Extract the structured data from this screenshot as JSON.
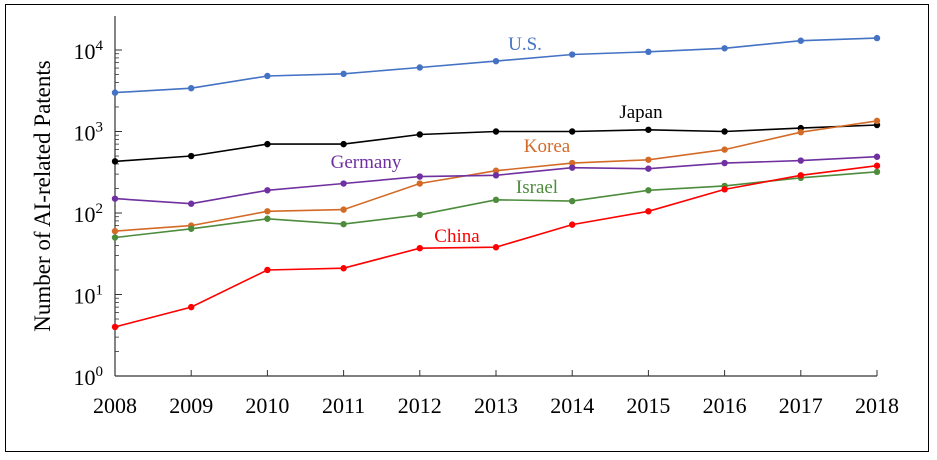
{
  "chart_data": {
    "type": "line",
    "title": "",
    "xlabel": "",
    "ylabel": "Number of AI-related Patents",
    "yscale": "log",
    "ylim": [
      1,
      20000
    ],
    "y_ticks": [
      {
        "base": "10",
        "exp": "0"
      },
      {
        "base": "10",
        "exp": "1"
      },
      {
        "base": "10",
        "exp": "2"
      },
      {
        "base": "10",
        "exp": "3"
      },
      {
        "base": "10",
        "exp": "4"
      }
    ],
    "x": [
      "2008",
      "2009",
      "2010",
      "2011",
      "2012",
      "2013",
      "2014",
      "2015",
      "2016",
      "2017",
      "2018"
    ],
    "grid": false,
    "legend": "inline labels",
    "series": [
      {
        "name": "U.S.",
        "color": "#4472c4",
        "values": [
          3000,
          3400,
          4800,
          5100,
          6100,
          7300,
          8800,
          9500,
          10500,
          13000,
          14000
        ]
      },
      {
        "name": "Japan",
        "color": "#000000",
        "values": [
          430,
          500,
          700,
          700,
          920,
          1000,
          1000,
          1050,
          1000,
          1100,
          1200
        ]
      },
      {
        "name": "Korea",
        "color": "#d36b27",
        "values": [
          60,
          70,
          105,
          110,
          230,
          330,
          410,
          450,
          600,
          980,
          1350
        ]
      },
      {
        "name": "Germany",
        "color": "#7030a0",
        "values": [
          150,
          130,
          190,
          230,
          280,
          290,
          360,
          350,
          410,
          440,
          490
        ]
      },
      {
        "name": "Israel",
        "color": "#4c8c3c",
        "values": [
          50,
          64,
          85,
          73,
          95,
          145,
          140,
          190,
          215,
          270,
          320
        ]
      },
      {
        "name": "China",
        "color": "#ff0000",
        "values": [
          4,
          7,
          20,
          21,
          37,
          38,
          72,
          105,
          195,
          290,
          380
        ]
      }
    ]
  }
}
